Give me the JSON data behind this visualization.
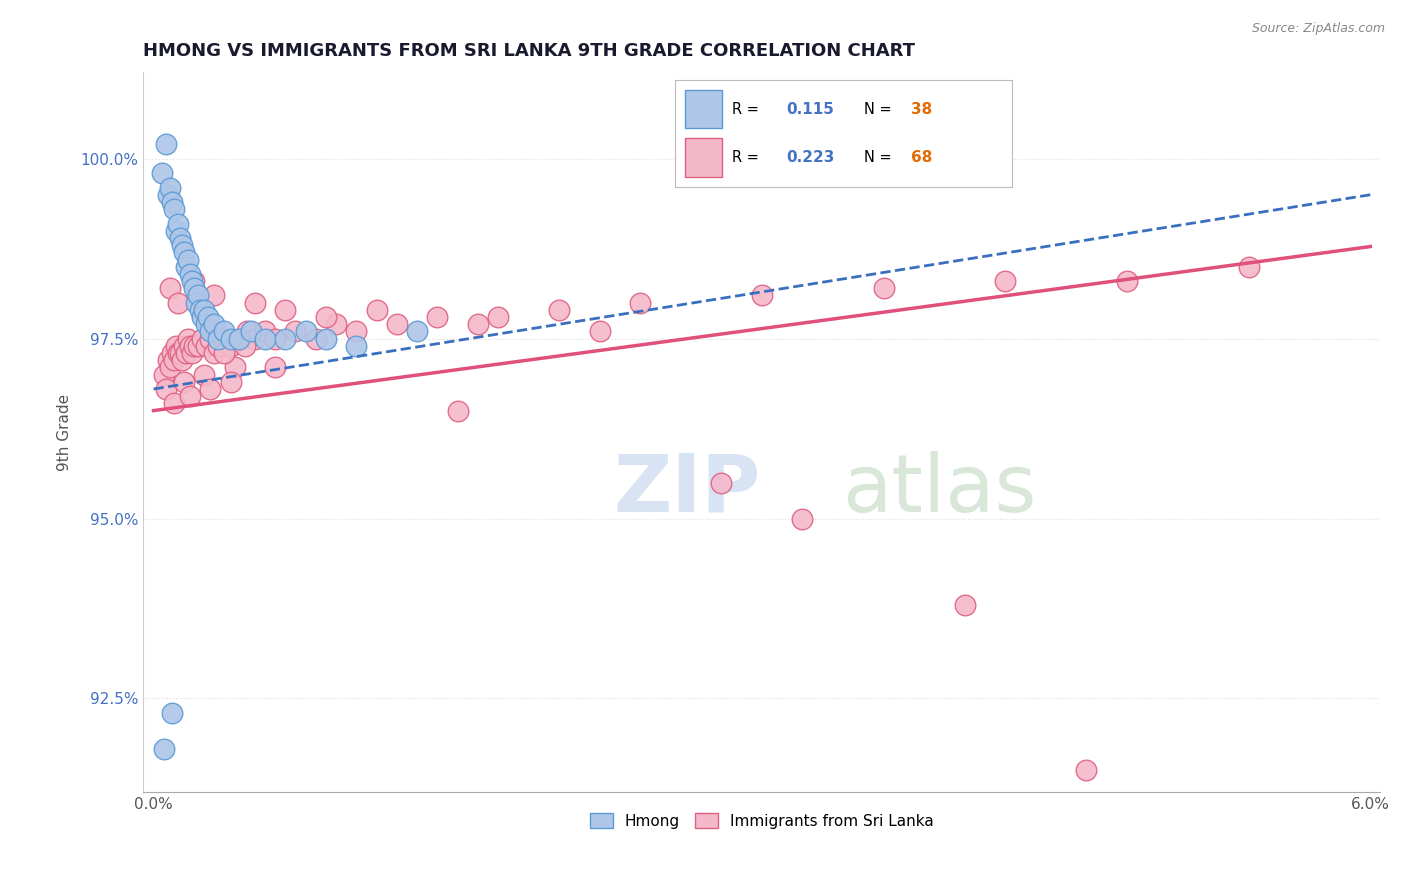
{
  "title": "HMONG VS IMMIGRANTS FROM SRI LANKA 9TH GRADE CORRELATION CHART",
  "source_text": "Source: ZipAtlas.com",
  "ylabel": "9th Grade",
  "xlim": [
    -0.05,
    6.05
  ],
  "ylim": [
    91.2,
    101.2
  ],
  "yticks": [
    92.5,
    95.0,
    97.5,
    100.0
  ],
  "yticklabels": [
    "92.5%",
    "95.0%",
    "97.5%",
    "100.0%"
  ],
  "title_color": "#1a1a2e",
  "title_fontsize": 13,
  "axis_label_color": "#555555",
  "tick_color": "#555555",
  "grid_color": "#dddddd",
  "background_color": "#ffffff",
  "legend_R1_val": "0.115",
  "legend_N1_val": "38",
  "legend_R2_val": "0.223",
  "legend_N2_val": "68",
  "hmong_color": "#aec6e8",
  "hmong_edge_color": "#5b9bd5",
  "srilanka_color": "#f4b8cb",
  "srilanka_edge_color": "#e06080",
  "trendline_blue_color": "#3a6fbf",
  "trendline_pink_color": "#e0507a",
  "watermark_zip_color": "#c8d8ee",
  "watermark_atlas_color": "#c8d8c0",
  "legend_label1": "Hmong",
  "legend_label2": "Immigrants from Sri Lanka",
  "val_color_blue": "#4472c4",
  "val_color_orange": "#e36c09",
  "hmong_x": [
    0.04,
    0.06,
    0.07,
    0.08,
    0.09,
    0.1,
    0.11,
    0.12,
    0.13,
    0.14,
    0.15,
    0.16,
    0.17,
    0.18,
    0.19,
    0.2,
    0.21,
    0.22,
    0.23,
    0.24,
    0.25,
    0.26,
    0.27,
    0.28,
    0.3,
    0.32,
    0.35,
    0.38,
    0.42,
    0.48,
    0.55,
    0.65,
    0.75,
    0.85,
    1.0,
    1.3,
    0.05,
    0.09
  ],
  "hmong_y": [
    99.8,
    100.2,
    99.5,
    99.6,
    99.4,
    99.3,
    99.0,
    99.1,
    98.9,
    98.8,
    98.7,
    98.5,
    98.6,
    98.4,
    98.3,
    98.2,
    98.0,
    98.1,
    97.9,
    97.8,
    97.9,
    97.7,
    97.8,
    97.6,
    97.7,
    97.5,
    97.6,
    97.5,
    97.5,
    97.6,
    97.5,
    97.5,
    97.6,
    97.5,
    97.4,
    97.6,
    91.8,
    92.3
  ],
  "srilanka_x": [
    0.05,
    0.07,
    0.08,
    0.09,
    0.1,
    0.11,
    0.12,
    0.13,
    0.14,
    0.15,
    0.16,
    0.17,
    0.18,
    0.19,
    0.2,
    0.22,
    0.24,
    0.26,
    0.28,
    0.3,
    0.32,
    0.35,
    0.38,
    0.42,
    0.46,
    0.5,
    0.55,
    0.6,
    0.7,
    0.8,
    0.9,
    1.0,
    1.2,
    1.4,
    1.7,
    2.0,
    2.4,
    3.0,
    3.6,
    4.2,
    4.8,
    5.4,
    0.06,
    0.15,
    0.25,
    0.4,
    1.5,
    2.8,
    0.35,
    0.45,
    0.08,
    0.12,
    0.2,
    0.3,
    0.5,
    0.65,
    0.85,
    1.1,
    1.6,
    2.2,
    3.2,
    4.0,
    4.6,
    0.1,
    0.18,
    0.28,
    0.38,
    0.6
  ],
  "srilanka_y": [
    97.0,
    97.2,
    97.1,
    97.3,
    97.2,
    97.4,
    97.3,
    97.3,
    97.2,
    97.4,
    97.3,
    97.5,
    97.4,
    97.3,
    97.4,
    97.4,
    97.5,
    97.4,
    97.5,
    97.3,
    97.4,
    97.5,
    97.4,
    97.5,
    97.6,
    97.5,
    97.6,
    97.5,
    97.6,
    97.5,
    97.7,
    97.6,
    97.7,
    97.8,
    97.8,
    97.9,
    98.0,
    98.1,
    98.2,
    98.3,
    98.3,
    98.5,
    96.8,
    96.9,
    97.0,
    97.1,
    96.5,
    95.5,
    97.3,
    97.4,
    98.2,
    98.0,
    98.3,
    98.1,
    98.0,
    97.9,
    97.8,
    97.9,
    97.7,
    97.6,
    95.0,
    93.8,
    91.5,
    96.6,
    96.7,
    96.8,
    96.9,
    97.1
  ]
}
